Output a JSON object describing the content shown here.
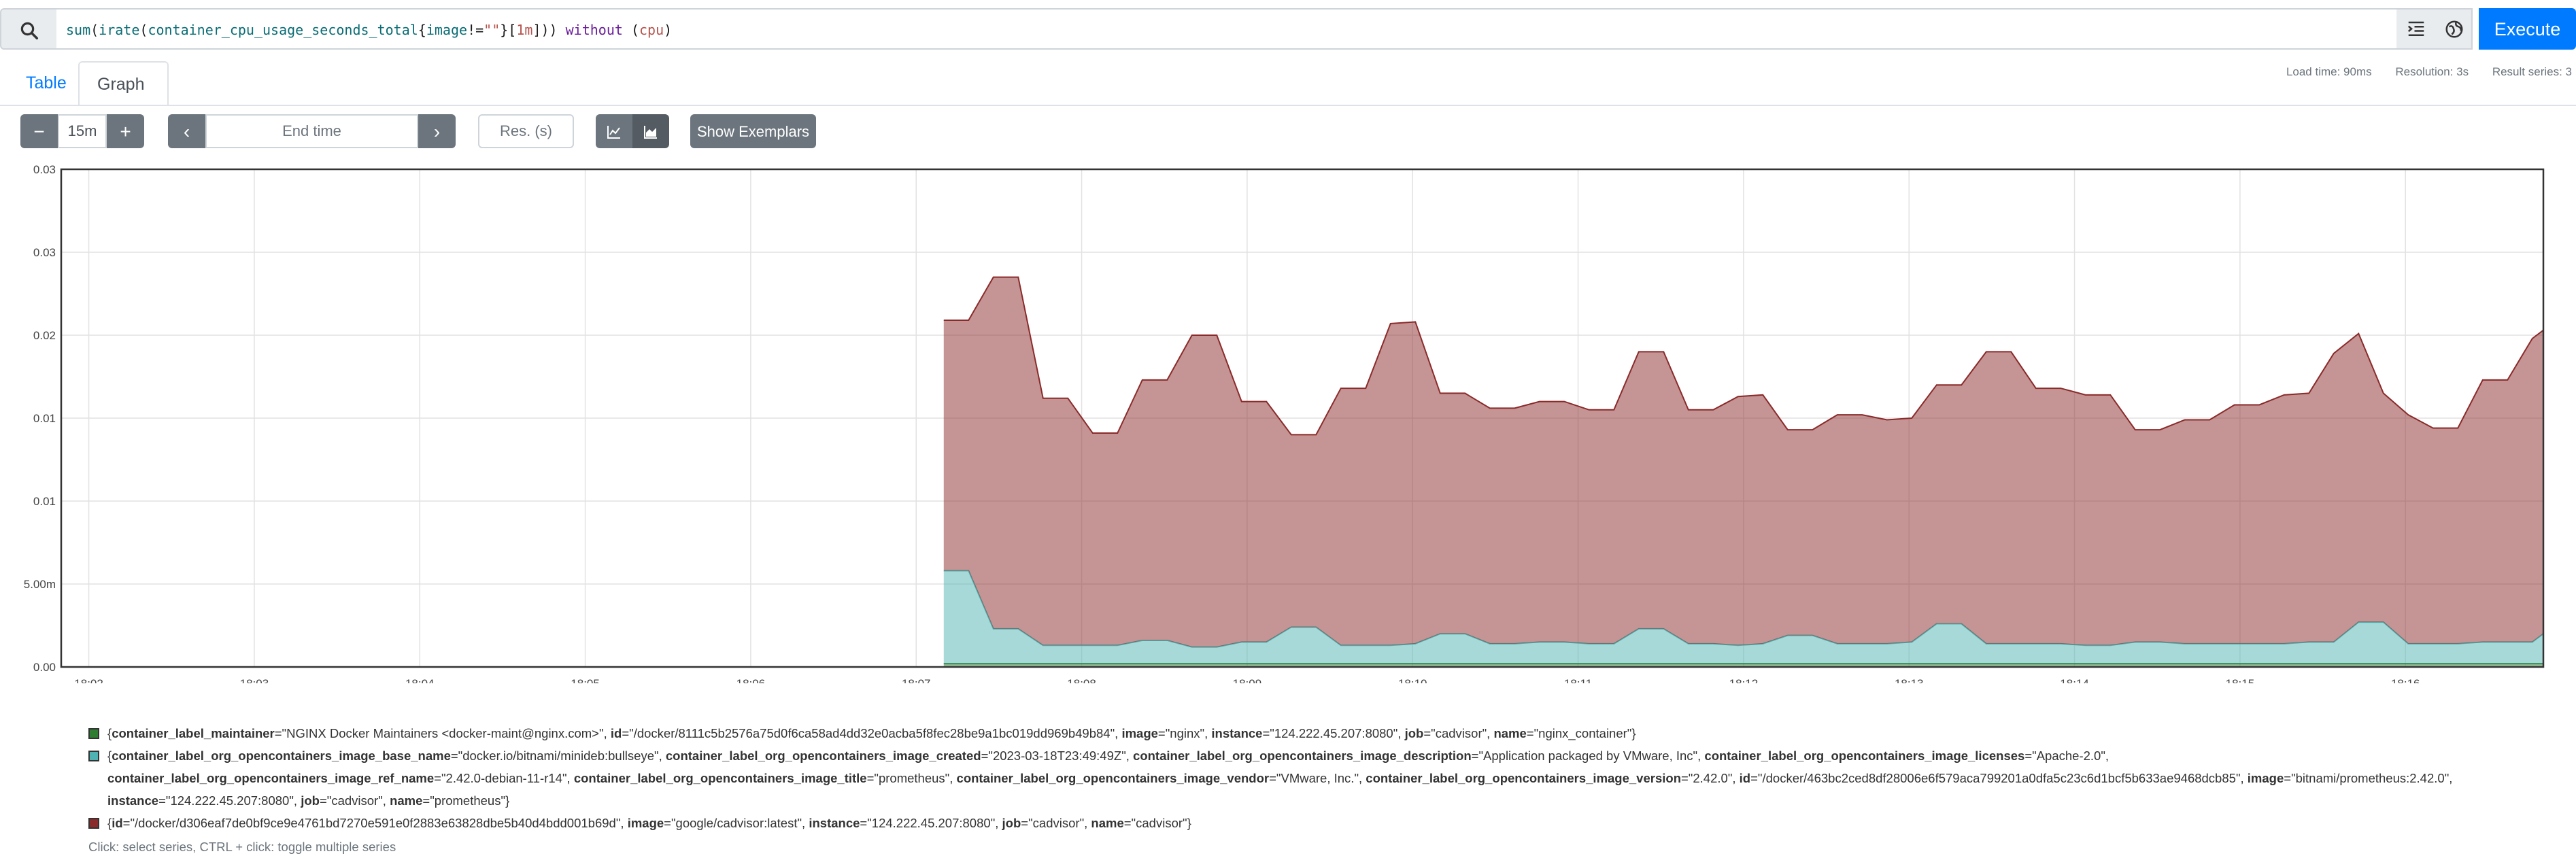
{
  "query": {
    "tokens": [
      {
        "t": "sum",
        "c": "fn"
      },
      {
        "t": "(",
        "c": ""
      },
      {
        "t": "irate",
        "c": "fn"
      },
      {
        "t": "(",
        "c": ""
      },
      {
        "t": "container_cpu_usage_seconds_total",
        "c": "fn"
      },
      {
        "t": "{",
        "c": ""
      },
      {
        "t": "image",
        "c": "fn"
      },
      {
        "t": "!=",
        "c": ""
      },
      {
        "t": "\"\"",
        "c": "str"
      },
      {
        "t": "}",
        "c": ""
      },
      {
        "t": "[",
        "c": ""
      },
      {
        "t": "1m",
        "c": "str"
      },
      {
        "t": "]",
        "c": ""
      },
      {
        "t": ")) ",
        "c": ""
      },
      {
        "t": "without",
        "c": "kw"
      },
      {
        "t": " (",
        "c": ""
      },
      {
        "t": "cpu",
        "c": "str"
      },
      {
        "t": ")",
        "c": ""
      }
    ],
    "execute_label": "Execute",
    "icons": {
      "search": "search-icon",
      "format": "format-icon",
      "explorer": "metrics-explorer-icon"
    }
  },
  "tabs": {
    "table": "Table",
    "graph": "Graph",
    "active": "graph"
  },
  "stats": {
    "load_time": "Load time: 90ms",
    "resolution": "Resolution: 3s",
    "result_series": "Result series: 3"
  },
  "controls": {
    "range_minus": "−",
    "range_value": "15m",
    "range_plus": "+",
    "prev": "‹",
    "end_time_placeholder": "End time",
    "next": "›",
    "resolution_placeholder": "Res. (s)",
    "show_exemplars": "Show Exemplars",
    "chart_mode": "stacked"
  },
  "chart_data": {
    "type": "area",
    "stacked": true,
    "x_ticks": [
      "18:02",
      "18:03",
      "18:04",
      "18:05",
      "18:06",
      "18:07",
      "18:08",
      "18:09",
      "18:10",
      "18:11",
      "18:12",
      "18:13",
      "18:14",
      "18:15",
      "18:16"
    ],
    "x_range": [
      "18:01:50",
      "18:16:50"
    ],
    "y_ticks": [
      "0.00",
      "5.00m",
      "0.01",
      "0.01",
      "0.02",
      "0.03",
      "0.03"
    ],
    "ylim": [
      0,
      0.03
    ],
    "grid": true,
    "series_start": "18:07:10",
    "sample_step_seconds": 9,
    "series": [
      {
        "name": "nginx_container",
        "color": "#2e7d32",
        "values": [
          0.0002,
          0.0002,
          0.0002,
          0.0002,
          0.0002,
          0.0002,
          0.0002,
          0.0002,
          0.0002,
          0.0002,
          0.0002,
          0.0002,
          0.0002,
          0.0002,
          0.0002,
          0.0002,
          0.0002,
          0.0002,
          0.0002,
          0.0002,
          0.0002,
          0.0002,
          0.0002,
          0.0002,
          0.0002,
          0.0002,
          0.0002,
          0.0002,
          0.0002,
          0.0002,
          0.0002,
          0.0002,
          0.0002,
          0.0002,
          0.0002,
          0.0002,
          0.0002,
          0.0002,
          0.0002,
          0.0002,
          0.0002,
          0.0002,
          0.0002,
          0.0002,
          0.0002,
          0.0002,
          0.0002,
          0.0002,
          0.0002,
          0.0002,
          0.0002,
          0.0002,
          0.0002,
          0.0002,
          0.0002,
          0.0002,
          0.0002,
          0.0002,
          0.0002,
          0.0002,
          0.0002,
          0.0002,
          0.0002,
          0.0002,
          0.0002,
          0.0002,
          0.0002,
          0.0002,
          0.0002,
          0.0002,
          0.0002
        ]
      },
      {
        "name": "prometheus",
        "color": "#4fb3b3",
        "values": [
          0.0056,
          0.0056,
          0.0021,
          0.0021,
          0.0011,
          0.0011,
          0.0011,
          0.0011,
          0.0014,
          0.0014,
          0.001,
          0.001,
          0.0013,
          0.0013,
          0.0022,
          0.0022,
          0.0011,
          0.0011,
          0.0011,
          0.0012,
          0.0018,
          0.0018,
          0.0012,
          0.0012,
          0.0013,
          0.0013,
          0.0012,
          0.0012,
          0.0021,
          0.0021,
          0.0012,
          0.0012,
          0.0011,
          0.0012,
          0.0017,
          0.0017,
          0.0012,
          0.0012,
          0.0012,
          0.0013,
          0.0024,
          0.0024,
          0.0012,
          0.0012,
          0.0012,
          0.0012,
          0.0011,
          0.0011,
          0.0013,
          0.0013,
          0.0012,
          0.0012,
          0.0012,
          0.0012,
          0.0012,
          0.0013,
          0.0013,
          0.0025,
          0.0025,
          0.0012,
          0.0012,
          0.0012,
          0.0013,
          0.0013,
          0.0013,
          0.0018,
          0.0018,
          0.0013,
          0.0013,
          0.0013,
          0.0013
        ]
      },
      {
        "name": "cadvisor",
        "color": "#8b2a2a",
        "values": [
          0.0151,
          0.0151,
          0.0212,
          0.0212,
          0.0149,
          0.0149,
          0.0128,
          0.0128,
          0.0157,
          0.0157,
          0.0188,
          0.0188,
          0.0145,
          0.0145,
          0.0116,
          0.0116,
          0.0155,
          0.0155,
          0.0194,
          0.0194,
          0.0145,
          0.0145,
          0.0142,
          0.0142,
          0.0145,
          0.0145,
          0.0141,
          0.0141,
          0.0167,
          0.0167,
          0.0141,
          0.0141,
          0.015,
          0.015,
          0.0124,
          0.0124,
          0.0138,
          0.0138,
          0.0135,
          0.0135,
          0.0144,
          0.0144,
          0.0176,
          0.0176,
          0.0154,
          0.0154,
          0.0151,
          0.0151,
          0.0128,
          0.0128,
          0.0135,
          0.0135,
          0.0144,
          0.0144,
          0.015,
          0.015,
          0.0174,
          0.0174,
          0.0138,
          0.0138,
          0.013,
          0.013,
          0.0158,
          0.0158,
          0.0183,
          0.0183,
          0.0145,
          0.0145,
          0.013,
          0.013,
          0.013
        ]
      }
    ]
  },
  "legend": {
    "items": [
      {
        "color": "#2e7d32",
        "parts": [
          {
            "k": "container_label_maintainer",
            "v": "NGINX Docker Maintainers <docker-maint@nginx.com>"
          },
          {
            "k": "id",
            "v": "/docker/8111c5b2576a75d0f6ca58ad4dd32e0acba5f8fec28be9a1bc019dd969b49b84"
          },
          {
            "k": "image",
            "v": "nginx"
          },
          {
            "k": "instance",
            "v": "124.222.45.207:8080"
          },
          {
            "k": "job",
            "v": "cadvisor"
          },
          {
            "k": "name",
            "v": "nginx_container"
          }
        ]
      },
      {
        "color": "#4fb3b3",
        "parts": [
          {
            "k": "container_label_org_opencontainers_image_base_name",
            "v": "docker.io/bitnami/minideb:bullseye"
          },
          {
            "k": "container_label_org_opencontainers_image_created",
            "v": "2023-03-18T23:49:49Z"
          },
          {
            "k": "container_label_org_opencontainers_image_description",
            "v": "Application packaged by VMware, Inc"
          },
          {
            "k": "container_label_org_opencontainers_image_licenses",
            "v": "Apache-2.0"
          },
          {
            "k": "container_label_org_opencontainers_image_ref_name",
            "v": "2.42.0-debian-11-r14"
          },
          {
            "k": "container_label_org_opencontainers_image_title",
            "v": "prometheus"
          },
          {
            "k": "container_label_org_opencontainers_image_vendor",
            "v": "VMware, Inc."
          },
          {
            "k": "container_label_org_opencontainers_image_version",
            "v": "2.42.0"
          },
          {
            "k": "id",
            "v": "/docker/463bc2ced8df28006e6f579aca799201a0dfa5c23c6d1bcf5b633ae9468dcb85"
          },
          {
            "k": "image",
            "v": "bitnami/prometheus:2.42.0"
          },
          {
            "k": "instance",
            "v": "124.222.45.207:8080"
          },
          {
            "k": "job",
            "v": "cadvisor"
          },
          {
            "k": "name",
            "v": "prometheus"
          }
        ]
      },
      {
        "color": "#8b2a2a",
        "parts": [
          {
            "k": "id",
            "v": "/docker/d306eaf7de0bf9ce9e4761bd7270e591e0f2883e63828dbe5b40d4bdd001b69d"
          },
          {
            "k": "image",
            "v": "google/cadvisor:latest"
          },
          {
            "k": "instance",
            "v": "124.222.45.207:8080"
          },
          {
            "k": "job",
            "v": "cadvisor"
          },
          {
            "k": "name",
            "v": "cadvisor"
          }
        ]
      }
    ],
    "hint": "Click: select series, CTRL + click: toggle multiple series"
  }
}
